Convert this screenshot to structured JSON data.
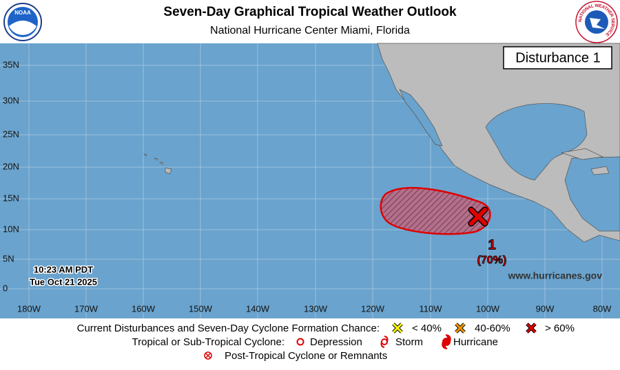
{
  "header": {
    "title": "Seven-Day Graphical Tropical Weather Outlook",
    "subtitle": "National Hurricane Center  Miami, Florida",
    "logo_left": "NOAA",
    "logo_right": "NATIONAL WEATHER SERVICE"
  },
  "map": {
    "title_box": "Disturbance 1",
    "lat_labels": [
      "35N",
      "30N",
      "25N",
      "20N",
      "15N",
      "10N",
      "5N",
      "0"
    ],
    "lon_labels": [
      "180W",
      "170W",
      "160W",
      "150W",
      "140W",
      "130W",
      "120W",
      "110W",
      "100W",
      "90W",
      "80W"
    ],
    "timestamp": [
      "10:23 AM PDT",
      "Tue Oct 21 2025"
    ],
    "website": "www.hurricanes.gov",
    "disturbances": [
      {
        "id": "1",
        "chance": "(70%)"
      }
    ]
  },
  "legend": {
    "formation_label": "Current Disturbances and Seven-Day Cyclone Formation Chance:",
    "formation_items": [
      "< 40%",
      "40-60%",
      "> 60%"
    ],
    "cyclone_label": "Tropical or Sub-Tropical Cyclone:",
    "cyclone_items": [
      "Depression",
      "Storm",
      "Hurricane"
    ],
    "post_tropical": "Post-Tropical Cyclone or Remnants"
  }
}
